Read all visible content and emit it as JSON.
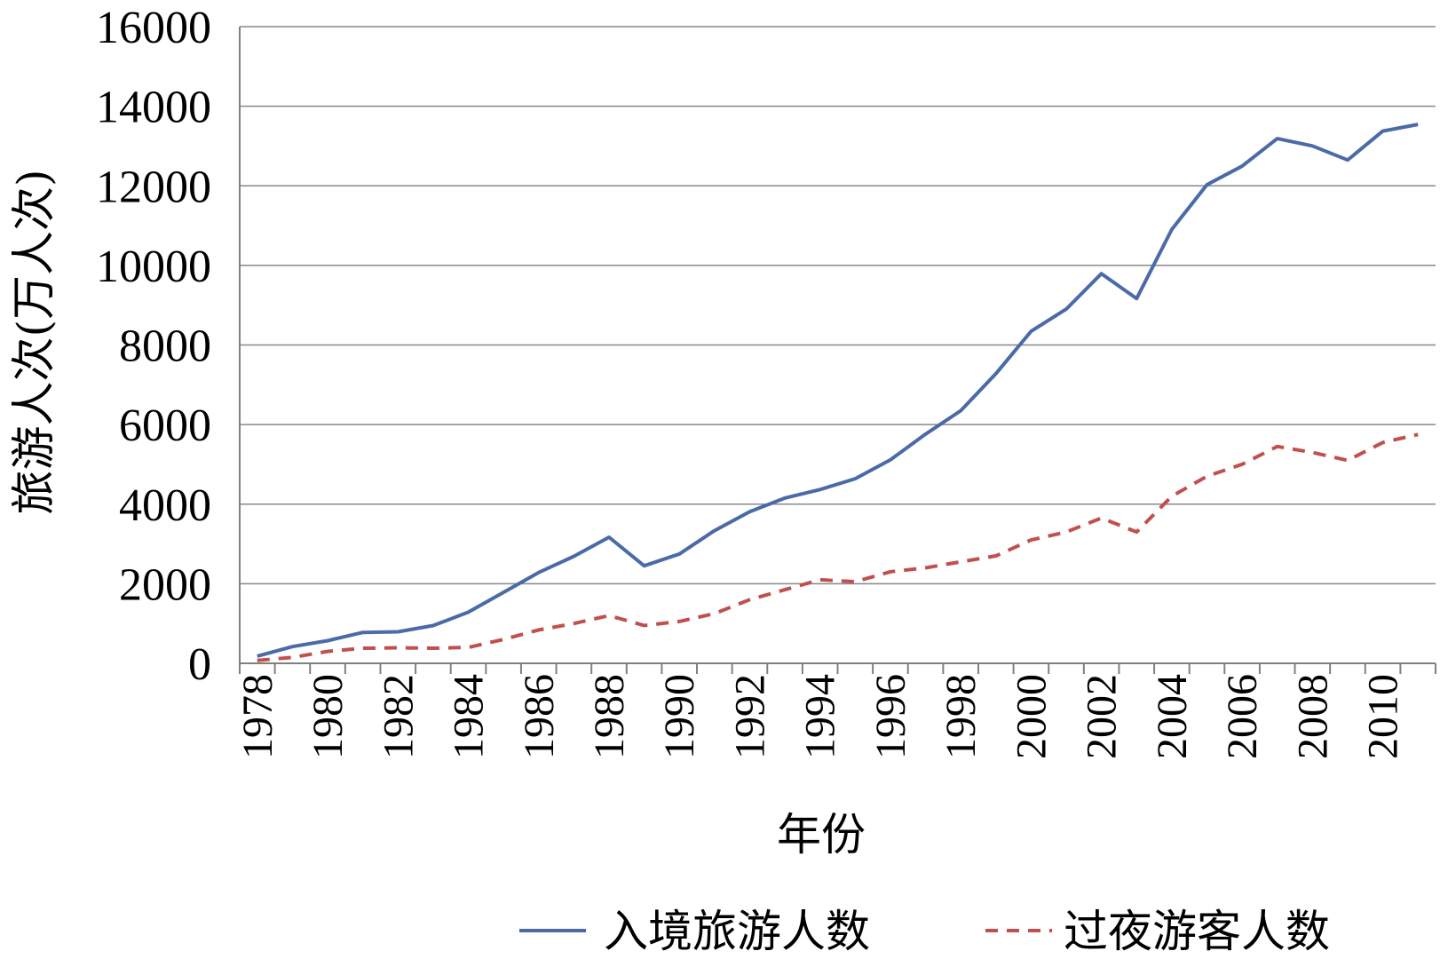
{
  "chart_data": {
    "type": "line",
    "title": "",
    "xlabel": "年份",
    "ylabel": "旅游人次(万人次)",
    "ylim": [
      0,
      16000
    ],
    "yticks": [
      "0",
      "2000",
      "4000",
      "6000",
      "8000",
      "10000",
      "12000",
      "14000",
      "16000"
    ],
    "xticks": [
      "1978",
      "1980",
      "1982",
      "1984",
      "1986",
      "1988",
      "1990",
      "1992",
      "1994",
      "1996",
      "1998",
      "2000",
      "2002",
      "2004",
      "2006",
      "2008",
      "2010"
    ],
    "x": [
      1978,
      1979,
      1980,
      1981,
      1982,
      1983,
      1984,
      1985,
      1986,
      1987,
      1988,
      1989,
      1990,
      1991,
      1992,
      1993,
      1994,
      1995,
      1996,
      1997,
      1998,
      1999,
      2000,
      2001,
      2002,
      2003,
      2004,
      2005,
      2006,
      2007,
      2008,
      2009,
      2010,
      2011
    ],
    "grid": true,
    "legend_position": "bottom-right",
    "series": [
      {
        "name": "入境旅游人数",
        "color": "#4a6aa8",
        "style": "solid",
        "values": [
          181,
          420,
          570,
          777,
          792,
          948,
          1285,
          1783,
          2282,
          2690,
          3169,
          2450,
          2746,
          3335,
          3812,
          4153,
          4368,
          4639,
          5113,
          5759,
          6348,
          7280,
          8344,
          8901,
          9791,
          9166,
          10904,
          12029,
          12494,
          13187,
          13003,
          12648,
          13376,
          13542
        ]
      },
      {
        "name": "过夜游客人数",
        "color": "#c0504d",
        "style": "dashed",
        "values": [
          72,
          150,
          300,
          380,
          390,
          380,
          400,
          600,
          840,
          1000,
          1200,
          950,
          1050,
          1250,
          1600,
          1850,
          2100,
          2050,
          2300,
          2400,
          2550,
          2700,
          3100,
          3300,
          3650,
          3300,
          4200,
          4700,
          5000,
          5450,
          5300,
          5100,
          5550,
          5750
        ]
      }
    ]
  }
}
